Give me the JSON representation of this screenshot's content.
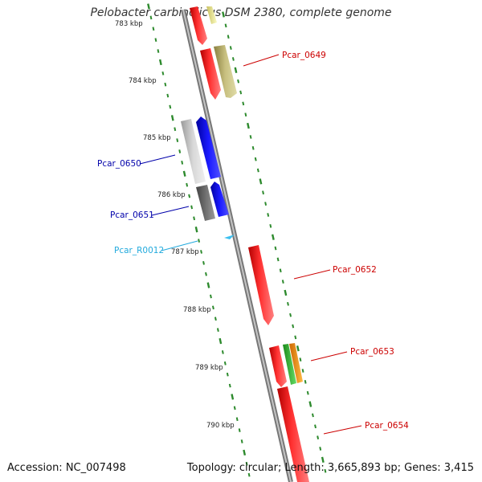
{
  "title": "Pelobacter carbinolicus DSM 2380, complete genome",
  "footer": {
    "accession": "Accession: NC_007498",
    "summary": "Topology: circular; Length: 3,665,893 bp; Genes: 3,415"
  },
  "colors": {
    "backbone": "#999999",
    "ruler": "#2d8a2d",
    "tick_label": "#222222",
    "forward_gene": "#ff1a1a",
    "reverse_gene": "#1010ff",
    "rna": "#3cc0f0"
  },
  "ruler_labels": [
    "783 kbp",
    "784 kbp",
    "785 kbp",
    "786 kbp",
    "787 kbp",
    "788 kbp",
    "789 kbp",
    "790 kbp"
  ],
  "features": [
    {
      "name": "",
      "strand": "forward",
      "color": "#ff1a1a"
    },
    {
      "name": "",
      "strand": "forward",
      "color": "#eded80"
    },
    {
      "name": "Pcar_0649",
      "strand": "forward",
      "color": "#ff1a1a",
      "label_color": "#cc0000"
    },
    {
      "name": "",
      "strand": "forward",
      "color": "#c8c080"
    },
    {
      "name": "Pcar_0650",
      "strand": "reverse",
      "color": "#1010ff",
      "label_color": "#0000aa"
    },
    {
      "name": "",
      "strand": "reverse",
      "color": "#c9c9c9"
    },
    {
      "name": "Pcar_0651",
      "strand": "reverse",
      "color": "#1010ff",
      "label_color": "#0000aa"
    },
    {
      "name": "",
      "strand": "reverse",
      "color": "#707070"
    },
    {
      "name": "Pcar_R0012",
      "strand": "forward",
      "color": "#3cc0f0",
      "label_color": "#22aadd"
    },
    {
      "name": "Pcar_0652",
      "strand": "forward",
      "color": "#ff1a1a",
      "label_color": "#cc0000"
    },
    {
      "name": "Pcar_0653",
      "strand": "forward",
      "color": "#ff1a1a",
      "label_color": "#cc0000"
    },
    {
      "name": "",
      "strand": "forward",
      "color": "#44cc44"
    },
    {
      "name": "",
      "strand": "forward",
      "color": "#ff9900"
    },
    {
      "name": "Pcar_0654",
      "strand": "forward",
      "color": "#ff1a1a",
      "label_color": "#cc0000"
    }
  ]
}
